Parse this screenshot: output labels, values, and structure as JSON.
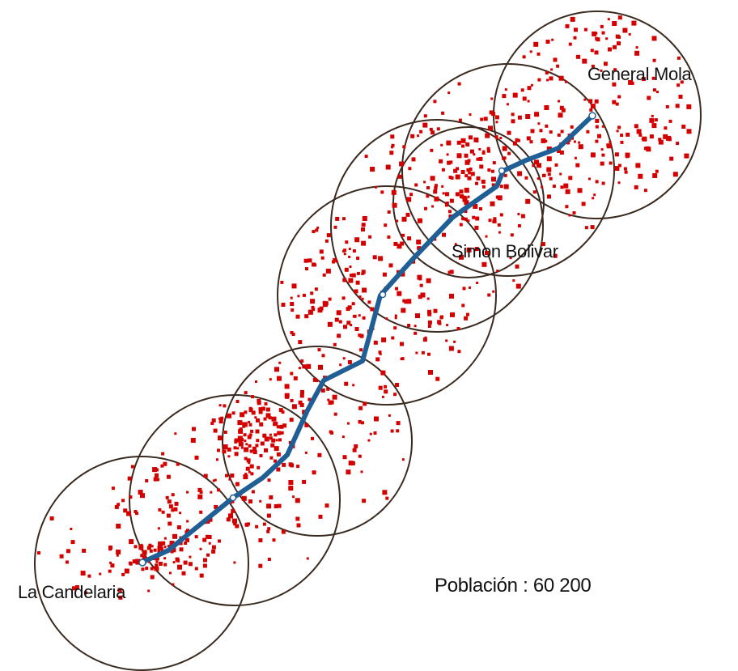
{
  "map": {
    "stations": [
      "General Mola",
      "Simon Bolivar",
      "La Candelaria"
    ],
    "population_text": "Población : 60 200"
  },
  "colors": {
    "route": "#1f5f96",
    "circle": "#3a2a20",
    "population_dots": "#d40000",
    "text": "#111111",
    "background": "#ffffff"
  }
}
